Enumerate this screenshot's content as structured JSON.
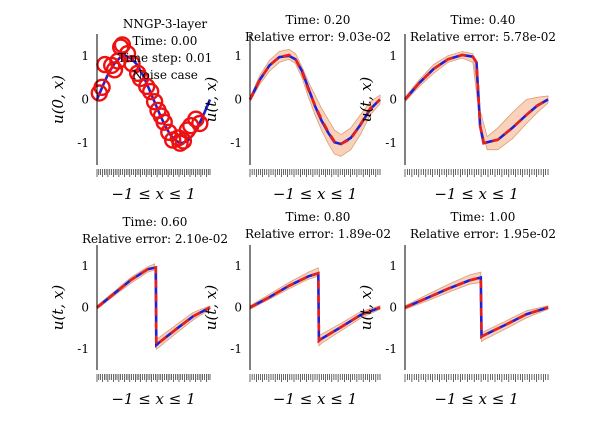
{
  "chart_data": [
    {
      "type": "line",
      "title": [
        "NNGP-3-layer",
        "Time: 0.00",
        "Time step: 0.01",
        "Noise case"
      ],
      "xlabel": "−1 ≤ x ≤ 1",
      "ylabel": "u(0, x)",
      "xlim": [
        -1,
        1
      ],
      "ylim": [
        -1.5,
        1.5
      ],
      "yticks": [
        -1,
        0,
        1
      ],
      "grid": false,
      "series": [
        {
          "kind": "exact",
          "color": "#1f1fd6",
          "x": [
            -1.0,
            -0.9,
            -0.8,
            -0.7,
            -0.6,
            -0.5,
            -0.4,
            -0.3,
            -0.2,
            -0.1,
            0.0,
            0.1,
            0.2,
            0.3,
            0.4,
            0.5,
            0.6,
            0.7,
            0.8,
            0.9,
            1.0
          ],
          "y": [
            0.0,
            0.31,
            0.59,
            0.81,
            0.95,
            1.0,
            0.95,
            0.81,
            0.59,
            0.31,
            0.0,
            -0.31,
            -0.59,
            -0.81,
            -0.95,
            -1.0,
            -0.95,
            -0.81,
            -0.59,
            -0.31,
            0.0
          ]
        },
        {
          "kind": "observations",
          "color": "#ee1111",
          "x": [
            -0.96,
            -0.91,
            -0.86,
            -0.74,
            -0.69,
            -0.63,
            -0.58,
            -0.55,
            -0.46,
            -0.38,
            -0.28,
            -0.23,
            -0.12,
            -0.05,
            0.02,
            0.08,
            0.14,
            0.19,
            0.27,
            0.34,
            0.44,
            0.47,
            0.53,
            0.6,
            0.66,
            0.75,
            0.82
          ],
          "y": [
            0.15,
            0.28,
            0.8,
            0.78,
            0.68,
            0.88,
            1.2,
            1.25,
            1.05,
            0.82,
            0.6,
            0.48,
            0.3,
            0.18,
            -0.05,
            -0.25,
            -0.38,
            -0.52,
            -0.75,
            -0.93,
            -0.88,
            -1.0,
            -0.95,
            -0.7,
            -0.6,
            -0.45,
            -0.55
          ]
        }
      ],
      "rug": true
    },
    {
      "type": "line",
      "title": [
        "Time:  0.20",
        "Relative error:  9.03e-02"
      ],
      "xlabel": "−1 ≤ x ≤ 1",
      "ylabel": "u(t, x)",
      "xlim": [
        -1,
        1
      ],
      "ylim": [
        -1.5,
        1.5
      ],
      "yticks": [
        -1,
        0,
        1
      ],
      "grid": false,
      "series": [
        {
          "kind": "band",
          "color": "#f7c3a4",
          "x": [
            -1.0,
            -0.85,
            -0.7,
            -0.55,
            -0.4,
            -0.3,
            -0.2,
            -0.1,
            0.0,
            0.1,
            0.2,
            0.3,
            0.4,
            0.55,
            0.7,
            0.85,
            1.0
          ],
          "upper": [
            0.05,
            0.55,
            0.9,
            1.1,
            1.15,
            1.05,
            0.75,
            0.4,
            0.1,
            -0.2,
            -0.45,
            -0.7,
            -0.8,
            -0.65,
            -0.35,
            -0.05,
            0.1
          ],
          "lower": [
            -0.05,
            0.35,
            0.65,
            0.85,
            0.92,
            0.82,
            0.5,
            0.05,
            -0.35,
            -0.7,
            -1.0,
            -1.25,
            -1.3,
            -1.15,
            -0.8,
            -0.35,
            -0.1
          ]
        },
        {
          "kind": "exact",
          "color": "#1f1fd6",
          "x": [
            -1.0,
            -0.85,
            -0.7,
            -0.55,
            -0.4,
            -0.3,
            -0.2,
            -0.1,
            0.0,
            0.1,
            0.2,
            0.3,
            0.4,
            0.55,
            0.7,
            0.85,
            1.0
          ],
          "y": [
            0.0,
            0.45,
            0.78,
            0.97,
            1.0,
            0.92,
            0.65,
            0.25,
            -0.15,
            -0.48,
            -0.75,
            -0.98,
            -1.02,
            -0.88,
            -0.58,
            -0.22,
            0.0
          ]
        },
        {
          "kind": "prediction",
          "color": "#e8201c",
          "x": [
            -1.0,
            -0.85,
            -0.7,
            -0.55,
            -0.4,
            -0.3,
            -0.2,
            -0.1,
            0.0,
            0.1,
            0.2,
            0.3,
            0.4,
            0.55,
            0.7,
            0.85,
            1.0
          ],
          "y": [
            0.0,
            0.45,
            0.78,
            0.97,
            1.02,
            0.93,
            0.63,
            0.22,
            -0.13,
            -0.45,
            -0.73,
            -0.96,
            -1.02,
            -0.9,
            -0.57,
            -0.2,
            0.0
          ]
        }
      ],
      "rug": true
    },
    {
      "type": "line",
      "title": [
        "Time:  0.40",
        "Relative error:  5.78e-02"
      ],
      "xlabel": "−1 ≤ x ≤ 1",
      "ylabel": "u(t, x)",
      "xlim": [
        -1,
        1
      ],
      "ylim": [
        -1.5,
        1.5
      ],
      "yticks": [
        -1,
        0,
        1
      ],
      "grid": false,
      "series": [
        {
          "kind": "band",
          "color": "#f7c3a4",
          "x": [
            -1.0,
            -0.8,
            -0.6,
            -0.4,
            -0.2,
            -0.05,
            0.05,
            0.15,
            0.3,
            0.5,
            0.7,
            0.85,
            1.0
          ],
          "upper": [
            0.05,
            0.45,
            0.8,
            1.0,
            1.1,
            1.05,
            -0.25,
            -0.85,
            -0.65,
            -0.3,
            0.0,
            0.05,
            0.08
          ],
          "lower": [
            -0.05,
            0.3,
            0.6,
            0.85,
            0.95,
            0.85,
            -0.55,
            -1.15,
            -1.15,
            -0.9,
            -0.55,
            -0.3,
            -0.08
          ]
        },
        {
          "kind": "exact",
          "color": "#1f1fd6",
          "x": [
            -1.0,
            -0.8,
            -0.6,
            -0.4,
            -0.2,
            -0.05,
            0.0,
            0.05,
            0.1,
            0.3,
            0.5,
            0.7,
            0.85,
            1.0
          ],
          "y": [
            0.0,
            0.38,
            0.7,
            0.92,
            1.02,
            0.98,
            0.85,
            -0.6,
            -1.0,
            -0.92,
            -0.65,
            -0.35,
            -0.14,
            0.0
          ]
        },
        {
          "kind": "prediction",
          "color": "#e8201c",
          "x": [
            -1.0,
            -0.8,
            -0.6,
            -0.4,
            -0.2,
            -0.05,
            0.0,
            0.05,
            0.1,
            0.3,
            0.5,
            0.7,
            0.85,
            1.0
          ],
          "y": [
            0.0,
            0.38,
            0.7,
            0.92,
            1.02,
            0.98,
            0.85,
            -0.6,
            -1.0,
            -0.92,
            -0.65,
            -0.35,
            -0.14,
            0.0
          ]
        }
      ],
      "rug": true
    },
    {
      "type": "line",
      "title": [
        "Time:  0.60",
        "Relative error:  2.10e-02"
      ],
      "xlabel": "−1 ≤ x ≤ 1",
      "ylabel": "u(t, x)",
      "xlim": [
        -1,
        1
      ],
      "ylim": [
        -1.5,
        1.5
      ],
      "yticks": [
        -1,
        0,
        1
      ],
      "grid": false,
      "series": [
        {
          "kind": "band",
          "color": "#f7c3a4",
          "x": [
            -1.0,
            -0.7,
            -0.4,
            -0.1,
            0.02,
            0.05,
            0.1,
            0.4,
            0.7,
            1.0
          ],
          "upper": [
            0.04,
            0.38,
            0.72,
            0.98,
            1.05,
            -0.75,
            -0.72,
            -0.42,
            -0.12,
            0.04
          ],
          "lower": [
            -0.04,
            0.28,
            0.58,
            0.85,
            0.9,
            -1.0,
            -0.95,
            -0.62,
            -0.3,
            -0.04
          ]
        },
        {
          "kind": "exact",
          "color": "#1f1fd6",
          "x": [
            -1.0,
            -0.7,
            -0.4,
            -0.1,
            0.04,
            0.05,
            0.1,
            0.4,
            0.7,
            1.0
          ],
          "y": [
            0.0,
            0.33,
            0.66,
            0.92,
            0.96,
            -0.9,
            -0.84,
            -0.52,
            -0.21,
            0.0
          ]
        },
        {
          "kind": "prediction",
          "color": "#e8201c",
          "x": [
            -1.0,
            -0.7,
            -0.4,
            -0.1,
            0.04,
            0.05,
            0.1,
            0.4,
            0.7,
            1.0
          ],
          "y": [
            0.0,
            0.33,
            0.66,
            0.92,
            0.96,
            -0.9,
            -0.84,
            -0.52,
            -0.21,
            0.0
          ]
        }
      ],
      "rug": true
    },
    {
      "type": "line",
      "title": [
        "Time:  0.80",
        "Relative error:  1.89e-02"
      ],
      "xlabel": "−1 ≤ x ≤ 1",
      "ylabel": "u(t, x)",
      "xlim": [
        -1,
        1
      ],
      "ylim": [
        -1.5,
        1.5
      ],
      "yticks": [
        -1,
        0,
        1
      ],
      "grid": false,
      "series": [
        {
          "kind": "band",
          "color": "#f7c3a4",
          "x": [
            -1.0,
            -0.7,
            -0.4,
            -0.1,
            0.05,
            0.06,
            0.1,
            0.4,
            0.7,
            1.0
          ],
          "upper": [
            0.04,
            0.32,
            0.6,
            0.85,
            0.95,
            -0.68,
            -0.64,
            -0.38,
            -0.1,
            0.04
          ],
          "lower": [
            -0.04,
            0.2,
            0.45,
            0.68,
            0.75,
            -0.92,
            -0.86,
            -0.56,
            -0.26,
            -0.04
          ]
        },
        {
          "kind": "exact",
          "color": "#1f1fd6",
          "x": [
            -1.0,
            -0.7,
            -0.4,
            -0.1,
            0.05,
            0.06,
            0.1,
            0.4,
            0.7,
            1.0
          ],
          "y": [
            0.0,
            0.25,
            0.52,
            0.75,
            0.82,
            -0.8,
            -0.75,
            -0.47,
            -0.18,
            0.0
          ]
        },
        {
          "kind": "prediction",
          "color": "#e8201c",
          "x": [
            -1.0,
            -0.7,
            -0.4,
            -0.1,
            0.05,
            0.06,
            0.1,
            0.4,
            0.7,
            1.0
          ],
          "y": [
            0.0,
            0.25,
            0.52,
            0.75,
            0.82,
            -0.8,
            -0.75,
            -0.47,
            -0.18,
            0.0
          ]
        }
      ],
      "rug": true
    },
    {
      "type": "line",
      "title": [
        "Time:  1.00",
        "Relative error:  1.95e-02"
      ],
      "xlabel": "−1 ≤ x ≤ 1",
      "ylabel": "u(t, x)",
      "xlim": [
        -1,
        1
      ],
      "ylim": [
        -1.5,
        1.5
      ],
      "yticks": [
        -1,
        0,
        1
      ],
      "grid": false,
      "series": [
        {
          "kind": "band",
          "color": "#f7c3a4",
          "x": [
            -1.0,
            -0.7,
            -0.4,
            -0.1,
            0.06,
            0.07,
            0.1,
            0.4,
            0.7,
            1.0
          ],
          "upper": [
            0.04,
            0.3,
            0.55,
            0.78,
            0.85,
            -0.6,
            -0.58,
            -0.33,
            -0.08,
            0.04
          ],
          "lower": [
            -0.04,
            0.15,
            0.36,
            0.56,
            0.6,
            -0.82,
            -0.78,
            -0.52,
            -0.25,
            -0.04
          ]
        },
        {
          "kind": "exact",
          "color": "#1f1fd6",
          "x": [
            -1.0,
            -0.7,
            -0.4,
            -0.1,
            0.06,
            0.07,
            0.1,
            0.4,
            0.7,
            1.0
          ],
          "y": [
            0.0,
            0.22,
            0.45,
            0.65,
            0.72,
            -0.7,
            -0.67,
            -0.42,
            -0.16,
            0.0
          ]
        },
        {
          "kind": "prediction",
          "color": "#e8201c",
          "x": [
            -1.0,
            -0.7,
            -0.4,
            -0.1,
            0.06,
            0.07,
            0.1,
            0.4,
            0.7,
            1.0
          ],
          "y": [
            0.0,
            0.22,
            0.45,
            0.65,
            0.72,
            -0.7,
            -0.67,
            -0.42,
            -0.16,
            0.0
          ]
        }
      ],
      "rug": true
    }
  ]
}
